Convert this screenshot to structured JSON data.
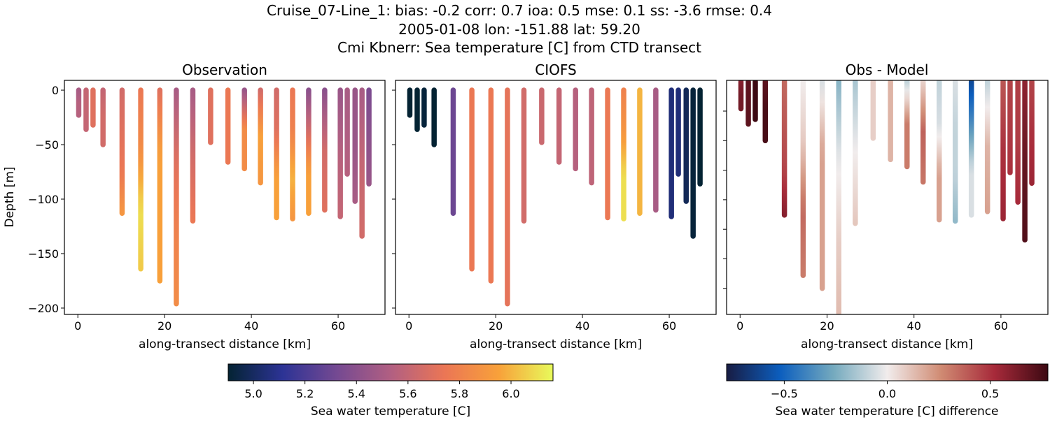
{
  "title_lines": [
    "Cruise_07-Line_1: bias: -0.2  corr: 0.7  ioa: 0.5  mse: 0.1  ss: -3.6  rmse: 0.4",
    "2005-01-08 lon: -151.88 lat: 59.20",
    "Cmi Kbnerr: Sea temperature [C] from CTD transect"
  ],
  "chart_data": [
    {
      "type": "scatter",
      "title": "Observation",
      "xlabel": "along-transect distance [km]",
      "ylabel": "Depth [m]",
      "xlim": [
        -3.1,
        70.8
      ],
      "ylim": [
        -205.8,
        9
      ],
      "xticks": [
        0,
        20,
        40,
        60
      ],
      "yticks": [
        0,
        -50,
        -100,
        -150,
        -200
      ],
      "value_source": "obs"
    },
    {
      "type": "scatter",
      "title": "CIOFS",
      "xlabel": "along-transect distance [km]",
      "ylabel": "",
      "xlim": [
        -3.1,
        70.8
      ],
      "ylim": [
        -205.8,
        9
      ],
      "xticks": [
        0,
        20,
        40,
        60
      ],
      "yticks": [
        0,
        -50,
        -100,
        -150,
        -200
      ],
      "value_source": "model"
    },
    {
      "type": "scatter",
      "title": "Obs - Model",
      "xlabel": "along-transect distance [km]",
      "ylabel": "",
      "xlim": [
        -3.1,
        70.8
      ],
      "ylim": [
        -197,
        1
      ],
      "xticks": [
        0,
        20,
        40,
        60
      ],
      "yticks": [
        -25,
        -50,
        -75,
        -100,
        -125,
        -150,
        -175
      ],
      "value_source": "diff"
    }
  ],
  "casts": [
    {
      "x": 0.2,
      "depth": 23,
      "obs": [
        5.5,
        5.55,
        5.55
      ],
      "model": [
        4.9
      ]
    },
    {
      "x": 1.9,
      "depth": 36,
      "obs": [
        5.6,
        5.6,
        5.6
      ],
      "model": [
        4.9
      ]
    },
    {
      "x": 3.5,
      "depth": 32,
      "obs": [
        5.7,
        5.7,
        5.7
      ],
      "model": [
        4.92
      ]
    },
    {
      "x": 5.8,
      "depth": 50,
      "obs": [
        5.6,
        5.65,
        5.65
      ],
      "model": [
        4.9
      ]
    },
    {
      "x": 10.2,
      "depth": 113,
      "obs": [
        5.65,
        5.7,
        5.75,
        5.9
      ],
      "model": [
        5.3
      ]
    },
    {
      "x": 14.5,
      "depth": 164,
      "obs": [
        5.75,
        5.85,
        6.1,
        6.05
      ],
      "model": [
        5.75
      ]
    },
    {
      "x": 18.9,
      "depth": 175,
      "obs": [
        5.7,
        5.95,
        5.95,
        5.95
      ],
      "model": [
        5.75
      ]
    },
    {
      "x": 22.7,
      "depth": 196,
      "obs": [
        5.5,
        5.7,
        5.8,
        5.85
      ],
      "model": [
        5.72
      ]
    },
    {
      "x": 26.5,
      "depth": 120,
      "obs": [
        5.5,
        5.65,
        5.75
      ],
      "model": [
        5.65
      ]
    },
    {
      "x": 30.6,
      "depth": 48,
      "obs": [
        5.7,
        5.7
      ],
      "model": [
        5.62
      ]
    },
    {
      "x": 34.6,
      "depth": 66,
      "obs": [
        5.75,
        5.75
      ],
      "model": [
        5.6
      ]
    },
    {
      "x": 38.4,
      "depth": 72,
      "obs": [
        5.45,
        5.85,
        5.85
      ],
      "model": [
        5.55
      ]
    },
    {
      "x": 42.1,
      "depth": 85,
      "obs": [
        5.65,
        5.95,
        5.9
      ],
      "model": [
        5.58
      ]
    },
    {
      "x": 45.8,
      "depth": 117,
      "obs": [
        5.65,
        5.7,
        5.95,
        5.95
      ],
      "model": [
        5.75
      ]
    },
    {
      "x": 49.5,
      "depth": 118,
      "obs": [
        5.75,
        5.8,
        6.0,
        5.9
      ],
      "model": [
        5.8,
        5.9,
        6.1,
        6.1
      ]
    },
    {
      "x": 53.2,
      "depth": 113,
      "obs": [
        5.4,
        5.65,
        5.95,
        5.95
      ],
      "model": [
        6.0
      ]
    },
    {
      "x": 56.9,
      "depth": 110,
      "obs": [
        5.4,
        5.65,
        5.7
      ],
      "model": [
        5.5
      ]
    },
    {
      "x": 60.5,
      "depth": 116,
      "obs": [
        5.45,
        5.55,
        5.6
      ],
      "model": [
        5.05
      ]
    },
    {
      "x": 62.1,
      "depth": 77,
      "obs": [
        5.5,
        5.55
      ],
      "model": [
        5.05
      ]
    },
    {
      "x": 63.9,
      "depth": 102,
      "obs": [
        5.45,
        5.45,
        5.5
      ],
      "model": [
        4.98
      ]
    },
    {
      "x": 65.5,
      "depth": 134,
      "obs": [
        5.5,
        5.6,
        5.65
      ],
      "model": [
        4.92
      ]
    },
    {
      "x": 67.1,
      "depth": 86,
      "obs": [
        5.35,
        5.4,
        5.45
      ],
      "model": [
        4.9
      ]
    }
  ],
  "colorbars": [
    {
      "label": "Sea water temperature [C]",
      "range": [
        4.902,
        6.163
      ],
      "ticks": [
        "5.0",
        "5.2",
        "5.4",
        "5.6",
        "5.8",
        "6.0"
      ],
      "colormap": [
        "#042333",
        "#2c3395",
        "#744992",
        "#b15f82",
        "#eb7655",
        "#f8a13a",
        "#e8fa5b"
      ]
    },
    {
      "label": "Sea water temperature [C] difference",
      "range": [
        -0.78,
        0.78
      ],
      "ticks": [
        "−0.5",
        "0.0",
        "0.5"
      ],
      "colormap": [
        "#181c43",
        "#0c5ebe",
        "#75aabe",
        "#f1ecec",
        "#d08b73",
        "#a72a3a",
        "#3c0912"
      ]
    }
  ]
}
